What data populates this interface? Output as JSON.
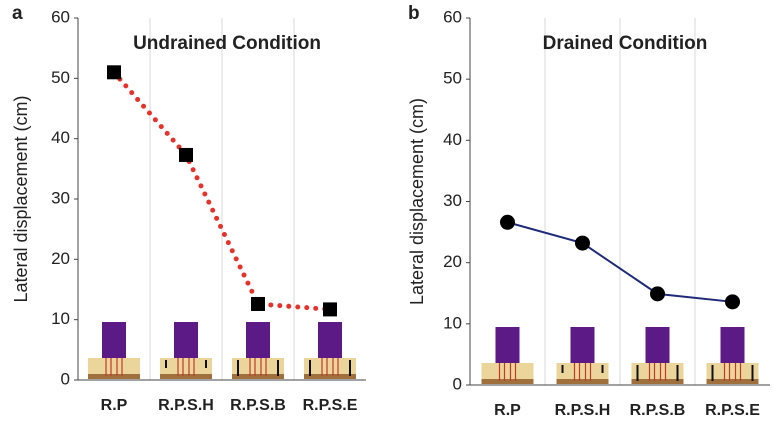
{
  "chart_data": [
    {
      "type": "line",
      "panel_label": "a",
      "title": "Undrained Condition",
      "title_color": "#e8312a",
      "ylabel": "Lateral displacement (cm)",
      "categories": [
        "R.P",
        "R.P.S.H",
        "R.P.S.B",
        "R.P.S.E"
      ],
      "values": [
        51,
        37.3,
        12.6,
        11.7
      ],
      "color": "#e8312a",
      "line_style": "dotted",
      "marker": "square",
      "marker_color": "#000000",
      "ylim": [
        0,
        60
      ],
      "yticks": [
        0,
        10,
        20,
        30,
        40,
        50,
        60
      ]
    },
    {
      "type": "line",
      "panel_label": "b",
      "title": "Drained Condition",
      "title_color": "#1f2a7a",
      "ylabel": "Lateral displacement (cm)",
      "categories": [
        "R.P",
        "R.P.S.H",
        "R.P.S.B",
        "R.P.S.E"
      ],
      "values": [
        26.6,
        23.2,
        14.9,
        13.6
      ],
      "color": "#1f2a7a",
      "line_style": "solid",
      "marker": "circle",
      "marker_color": "#000000",
      "ylim": [
        0,
        60
      ],
      "yticks": [
        0,
        10,
        20,
        30,
        40,
        50,
        60
      ]
    }
  ]
}
